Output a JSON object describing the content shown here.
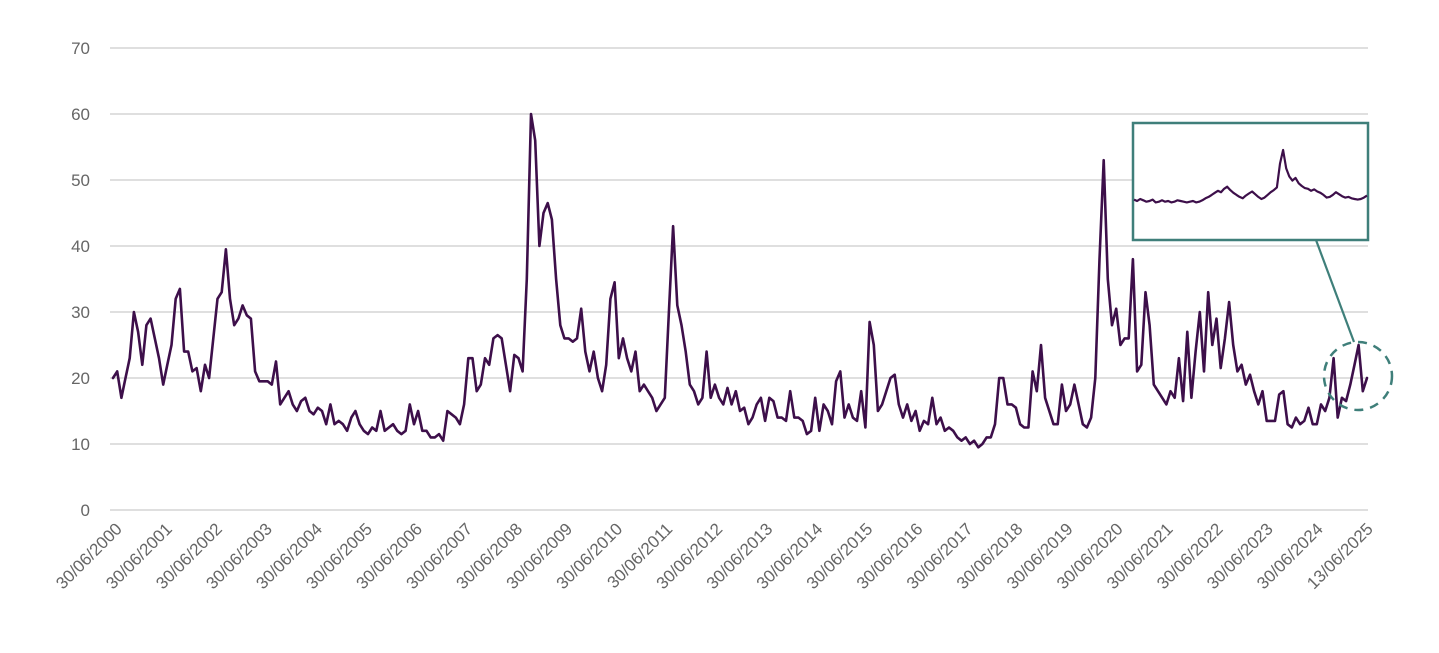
{
  "colors": {
    "line": "#3d0f4a",
    "grid": "#bfbfbf",
    "text": "#666666",
    "inset_border": "#3f7f7a"
  },
  "chart_data": {
    "type": "line",
    "ylim": [
      0,
      70
    ],
    "yticks": [
      "0",
      "10",
      "20",
      "30",
      "40",
      "50",
      "60",
      "70"
    ],
    "xtick_labels": [
      "30/06/2000",
      "30/06/2001",
      "30/06/2002",
      "30/06/2003",
      "30/06/2004",
      "30/06/2005",
      "30/06/2006",
      "30/06/2007",
      "30/06/2008",
      "30/06/2009",
      "30/06/2010",
      "30/06/2011",
      "30/06/2012",
      "30/06/2013",
      "30/06/2014",
      "30/06/2015",
      "30/06/2016",
      "30/06/2017",
      "30/06/2018",
      "30/06/2019",
      "30/06/2020",
      "30/06/2021",
      "30/06/2022",
      "30/06/2023",
      "30/06/2024",
      "13/06/2025"
    ],
    "grid": true,
    "x_start_year": 2000.5,
    "x_step_years": 0.0833,
    "values": [
      20,
      21,
      17,
      20,
      23,
      30,
      27,
      22,
      28,
      29,
      26,
      23,
      19,
      22,
      25,
      32,
      33.5,
      24,
      24,
      21,
      21.5,
      18,
      22,
      20,
      26,
      32,
      33,
      39.5,
      32,
      28,
      29,
      31,
      29.5,
      29,
      21,
      19.5,
      19.5,
      19.5,
      19,
      22.5,
      16,
      17,
      18,
      16,
      15,
      16.5,
      17,
      15,
      14.5,
      15.5,
      15,
      13,
      16,
      13,
      13.5,
      13,
      12,
      14,
      15,
      13,
      12,
      11.5,
      12.5,
      12,
      15,
      12,
      12.5,
      13,
      12,
      11.5,
      12,
      16,
      13,
      15,
      12,
      12,
      11,
      11,
      11.5,
      10.5,
      15,
      14.5,
      14,
      13,
      16,
      23,
      23,
      18,
      19,
      23,
      22,
      26,
      26.5,
      26,
      22,
      18,
      23.5,
      23,
      21,
      35,
      60,
      56,
      40,
      45,
      46.5,
      44,
      35,
      28,
      26,
      26,
      25.5,
      26,
      30.5,
      24,
      21,
      24,
      20,
      18,
      22,
      32,
      34.5,
      23,
      26,
      23,
      21,
      24,
      18,
      19,
      18,
      17,
      15,
      16,
      17,
      30,
      43,
      31,
      28,
      24,
      19,
      18,
      16,
      17,
      24,
      17,
      19,
      17,
      16,
      18.5,
      16,
      18,
      15,
      15.5,
      13,
      14,
      16,
      17,
      13.5,
      17,
      16.5,
      14,
      14,
      13.5,
      18,
      14,
      14,
      13.5,
      11.5,
      12,
      17,
      12,
      16,
      15,
      13,
      19.5,
      21,
      14,
      16,
      14,
      13.5,
      18,
      12.5,
      28.5,
      25,
      15,
      16,
      18,
      20,
      20.5,
      16,
      14,
      16,
      13.5,
      15,
      12,
      13.5,
      13,
      17,
      13,
      14,
      12,
      12.5,
      12,
      11,
      10.5,
      11,
      10,
      10.5,
      9.5,
      10,
      11,
      11,
      13,
      20,
      20,
      16,
      16,
      15.5,
      13,
      12.5,
      12.5,
      21,
      18,
      25,
      17,
      15,
      13,
      13,
      19,
      15,
      16,
      19,
      16,
      13,
      12.5,
      14,
      20,
      38,
      53,
      35,
      28,
      30.5,
      25,
      26,
      26,
      38,
      21,
      22,
      33,
      28,
      19,
      18,
      17,
      16,
      18,
      17,
      23,
      16.5,
      27,
      17,
      24,
      30,
      21,
      33,
      25,
      29,
      21.5,
      26,
      31.5,
      25,
      21,
      22,
      19,
      20.5,
      18,
      16,
      18,
      13.5,
      13.5,
      13.5,
      17.5,
      18,
      13,
      12.5,
      14,
      13,
      13.5,
      15.5,
      13,
      13,
      16,
      15,
      17,
      23,
      14,
      17,
      16.5,
      19,
      22,
      25,
      18,
      20
    ]
  },
  "inset": {
    "values": [
      47.2,
      47.0,
      47.3,
      47.1,
      46.9,
      47.0,
      47.2,
      46.8,
      46.9,
      47.1,
      46.9,
      47.0,
      46.8,
      46.9,
      47.1,
      47.0,
      46.9,
      46.8,
      46.9,
      47.0,
      46.8,
      46.9,
      47.1,
      47.4,
      47.6,
      47.9,
      48.2,
      48.5,
      48.3,
      48.8,
      49.1,
      48.6,
      48.2,
      47.9,
      47.6,
      47.4,
      47.8,
      48.1,
      48.4,
      48.0,
      47.6,
      47.3,
      47.5,
      47.9,
      48.3,
      48.6,
      49.0,
      52.5,
      54.5,
      51.8,
      50.6,
      50.0,
      50.4,
      49.6,
      49.2,
      48.9,
      48.8,
      48.5,
      48.7,
      48.4,
      48.2,
      47.9,
      47.5,
      47.6,
      47.9,
      48.3,
      48.0,
      47.7,
      47.5,
      47.6,
      47.4,
      47.3,
      47.2,
      47.3,
      47.5,
      47.8
    ]
  }
}
